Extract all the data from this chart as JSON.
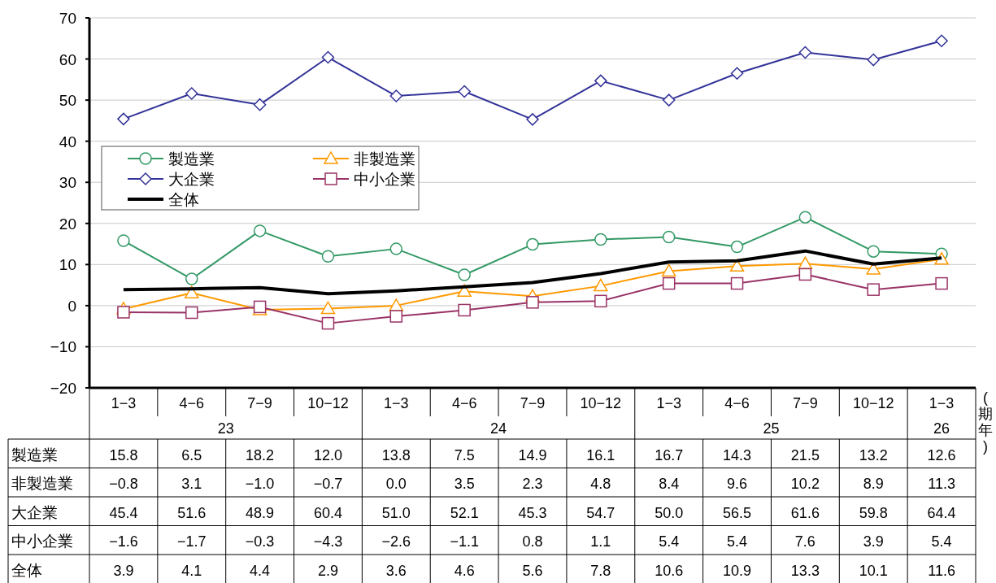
{
  "chart_data": {
    "type": "line",
    "xlabel": "(期年)",
    "categories": [
      "1−3",
      "4−6",
      "7−9",
      "10−12",
      "1−3",
      "4−6",
      "7−9",
      "10−12",
      "1−3",
      "4−6",
      "7−9",
      "10−12",
      "1−3"
    ],
    "annotations": [
      "23",
      "24",
      "25",
      "26"
    ],
    "ylim": [
      -20,
      70
    ],
    "yticks": [
      {
        "value": -20,
        "label": "−20"
      },
      {
        "value": -10,
        "label": "−10"
      },
      0,
      10,
      20,
      30,
      40,
      50,
      60,
      70
    ],
    "grid": "y",
    "legend": "top left",
    "series": [
      {
        "name": "製造業",
        "color": "#339966",
        "marker": "circle",
        "values": [
          15.8,
          6.5,
          18.2,
          12.0,
          13.8,
          7.5,
          14.9,
          16.1,
          16.7,
          14.3,
          21.5,
          13.2,
          12.6
        ],
        "value_labels": [
          "15.8",
          "6.5",
          "18.2",
          "12.0",
          "13.8",
          "7.5",
          "14.9",
          "16.1",
          "16.7",
          "14.3",
          "21.5",
          "13.2",
          "12.6"
        ]
      },
      {
        "name": "非製造業",
        "color": "#ff9900",
        "marker": "triangle",
        "values": [
          -0.8,
          3.1,
          -1.0,
          -0.7,
          0.0,
          3.5,
          2.3,
          4.8,
          8.4,
          9.6,
          10.2,
          8.9,
          11.3
        ],
        "value_labels": [
          "−0.8",
          "3.1",
          "−1.0",
          "−0.7",
          "0.0",
          "3.5",
          "2.3",
          "4.8",
          "8.4",
          "9.6",
          "10.2",
          "8.9",
          "11.3"
        ]
      },
      {
        "name": "大企業",
        "color": "#333399",
        "marker": "diamond",
        "values": [
          45.4,
          51.6,
          48.9,
          60.4,
          51.0,
          52.1,
          45.3,
          54.7,
          50.0,
          56.5,
          61.6,
          59.8,
          64.4
        ],
        "value_labels": [
          "45.4",
          "51.6",
          "48.9",
          "60.4",
          "51.0",
          "52.1",
          "45.3",
          "54.7",
          "50.0",
          "56.5",
          "61.6",
          "59.8",
          "64.4"
        ]
      },
      {
        "name": "中小企業",
        "color": "#993366",
        "marker": "square",
        "values": [
          -1.6,
          -1.7,
          -0.3,
          -4.3,
          -2.6,
          -1.1,
          0.8,
          1.1,
          5.4,
          5.4,
          7.6,
          3.9,
          5.4
        ],
        "value_labels": [
          "−1.6",
          "−1.7",
          "−0.3",
          "−4.3",
          "−2.6",
          "−1.1",
          "0.8",
          "1.1",
          "5.4",
          "5.4",
          "7.6",
          "3.9",
          "5.4"
        ]
      },
      {
        "name": "全体",
        "color": "#000000",
        "marker": "none",
        "values": [
          3.9,
          4.1,
          4.4,
          2.9,
          3.6,
          4.6,
          5.6,
          7.8,
          10.6,
          10.9,
          13.3,
          10.1,
          11.6
        ],
        "value_labels": [
          "3.9",
          "4.1",
          "4.4",
          "2.9",
          "3.6",
          "4.6",
          "5.6",
          "7.8",
          "10.6",
          "10.9",
          "13.3",
          "10.1",
          "11.6"
        ]
      }
    ]
  }
}
